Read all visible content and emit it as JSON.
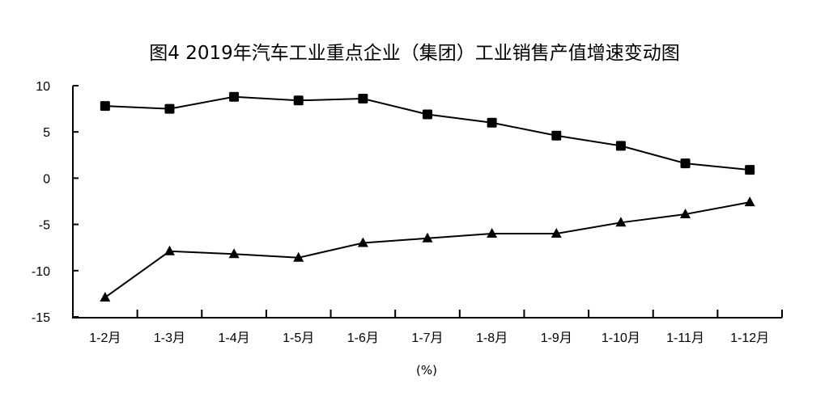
{
  "chart_data": {
    "type": "line",
    "title": "图4 2019年汽车工业重点企业（集团）工业销售产值增速变动图",
    "unit_label": "(%)",
    "categories": [
      "1-2月",
      "1-3月",
      "1-4月",
      "1-5月",
      "1-6月",
      "1-7月",
      "1-8月",
      "1-9月",
      "1-10月",
      "1-11月",
      "1-12月"
    ],
    "series": [
      {
        "marker": "square",
        "values": [
          7.8,
          7.5,
          8.8,
          8.4,
          8.6,
          6.9,
          6.0,
          4.6,
          3.5,
          1.6,
          0.9
        ]
      },
      {
        "marker": "triangle",
        "values": [
          -12.9,
          -7.9,
          -8.2,
          -8.6,
          -7.0,
          -6.5,
          -6.0,
          -6.0,
          -4.8,
          -3.9,
          -2.6
        ]
      }
    ],
    "yticks": [
      10,
      5,
      0,
      -5,
      -10,
      -15
    ],
    "ylim": [
      -15,
      10
    ],
    "grid": false,
    "line_color": "#000000"
  }
}
